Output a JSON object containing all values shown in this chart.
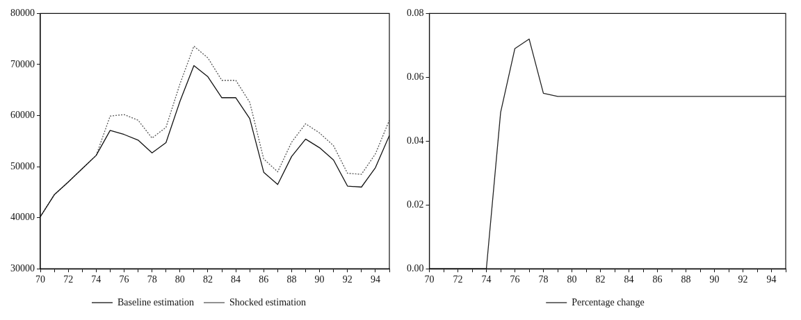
{
  "chart_data": [
    {
      "type": "line",
      "x": [
        70,
        71,
        72,
        73,
        74,
        75,
        76,
        77,
        78,
        79,
        80,
        81,
        82,
        83,
        84,
        85,
        86,
        87,
        88,
        89,
        90,
        91,
        92,
        93,
        94,
        95
      ],
      "series": [
        {
          "name": "Baseline estimation",
          "color": "#111111",
          "line_style": "solid",
          "values": [
            40200,
            44500,
            47000,
            49600,
            52200,
            57100,
            56300,
            55200,
            52700,
            54700,
            62800,
            69800,
            67600,
            63500,
            63500,
            59400,
            48900,
            46500,
            52000,
            55400,
            53700,
            51300,
            46200,
            46000,
            49800,
            56100
          ]
        },
        {
          "name": "Shocked estimation",
          "color": "#555555",
          "line_style": "dotted",
          "values": [
            40200,
            44500,
            47000,
            49600,
            52200,
            59900,
            60200,
            59100,
            55600,
            57700,
            66200,
            73600,
            71300,
            66900,
            66900,
            62600,
            51500,
            49000,
            54800,
            58400,
            56600,
            54100,
            48700,
            48500,
            52500,
            59100
          ]
        }
      ],
      "xlim": [
        70,
        95
      ],
      "xticks": [
        70,
        {
          "value": 71,
          "label": null
        },
        72,
        {
          "value": 73,
          "label": null
        },
        74,
        {
          "value": 75,
          "label": null
        },
        76,
        {
          "value": 77,
          "label": null
        },
        78,
        {
          "value": 79,
          "label": null
        },
        80,
        {
          "value": 81,
          "label": null
        },
        82,
        {
          "value": 83,
          "label": null
        },
        84,
        {
          "value": 85,
          "label": null
        },
        86,
        {
          "value": 87,
          "label": null
        },
        88,
        {
          "value": 89,
          "label": null
        },
        90,
        {
          "value": 91,
          "label": null
        },
        92,
        {
          "value": 93,
          "label": null
        },
        94,
        {
          "value": 95,
          "label": null
        }
      ],
      "ylim": [
        30000,
        80000
      ],
      "yticks": [
        30000,
        40000,
        50000,
        60000,
        70000,
        80000
      ],
      "grid": false,
      "legend": "bottom",
      "marker": "none"
    },
    {
      "type": "line",
      "x": [
        70,
        71,
        72,
        73,
        74,
        75,
        76,
        77,
        78,
        79,
        80,
        81,
        82,
        83,
        84,
        85,
        86,
        87,
        88,
        89,
        90,
        91,
        92,
        93,
        94,
        95
      ],
      "series": [
        {
          "name": "Percentage change",
          "color": "#222222",
          "line_style": "solid",
          "values": [
            0,
            0,
            0,
            0,
            0,
            0.049,
            0.069,
            0.072,
            0.055,
            0.054,
            0.054,
            0.054,
            0.054,
            0.054,
            0.054,
            0.054,
            0.054,
            0.054,
            0.054,
            0.054,
            0.054,
            0.054,
            0.054,
            0.054,
            0.054,
            0.054
          ]
        }
      ],
      "xlim": [
        70,
        95
      ],
      "xticks": [
        70,
        {
          "value": 71,
          "label": null
        },
        72,
        {
          "value": 73,
          "label": null
        },
        74,
        {
          "value": 75,
          "label": null
        },
        76,
        {
          "value": 77,
          "label": null
        },
        78,
        {
          "value": 79,
          "label": null
        },
        80,
        {
          "value": 81,
          "label": null
        },
        82,
        {
          "value": 83,
          "label": null
        },
        84,
        {
          "value": 85,
          "label": null
        },
        86,
        {
          "value": 87,
          "label": null
        },
        88,
        {
          "value": 89,
          "label": null
        },
        90,
        {
          "value": 91,
          "label": null
        },
        92,
        {
          "value": 93,
          "label": null
        },
        94,
        {
          "value": 95,
          "label": null
        }
      ],
      "ylim": [
        0,
        0.08
      ],
      "yticks": [
        {
          "value": 0,
          "label": "0.00"
        },
        0.02,
        0.04,
        0.06,
        0.08
      ],
      "grid": false,
      "legend": "bottom",
      "marker": "none"
    }
  ]
}
